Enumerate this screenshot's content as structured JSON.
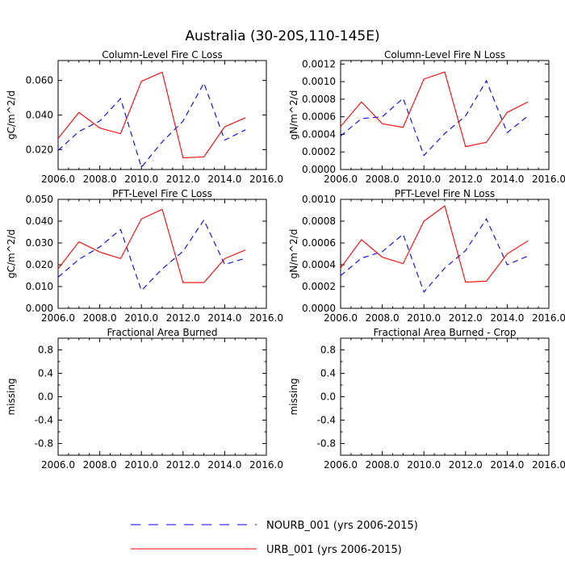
{
  "figure_title": "Australia (30-20S,110-145E)",
  "legend": {
    "entries": [
      {
        "label": "NOURB_001 (yrs 2006-2015)",
        "color": "#0000ff",
        "style": "dashed"
      },
      {
        "label": "URB_001 (yrs 2006-2015)",
        "color": "#ff0000",
        "style": "solid"
      }
    ]
  },
  "chart_data": [
    {
      "type": "line",
      "title": "Column-Level Fire C Loss",
      "ylabel": "gC/m^2/d",
      "xlim": [
        2006,
        2016
      ],
      "xticks": [
        2006,
        2008,
        2010,
        2012,
        2014,
        2016
      ],
      "xtick_labels": [
        "2006.0",
        "2008.0",
        "2010.0",
        "2012.0",
        "2014.0",
        "2016.0"
      ],
      "ylim": [
        0.0085,
        0.0715
      ],
      "yticks": [
        0.02,
        0.04,
        0.06
      ],
      "ytick_labels": [
        "0.020",
        "0.040",
        "0.060"
      ],
      "x": [
        2006,
        2007,
        2008,
        2009,
        2010,
        2011,
        2012,
        2013,
        2014,
        2015
      ],
      "series": [
        {
          "name": "NOURB_001 (yrs 2006-2015)",
          "color": "#0000ff",
          "style": "dashed",
          "values": [
            0.0195,
            0.0305,
            0.0365,
            0.0495,
            0.0098,
            0.0245,
            0.0365,
            0.0585,
            0.0255,
            0.0315
          ]
        },
        {
          "name": "URB_001 (yrs 2006-2015)",
          "color": "#ff0000",
          "style": "solid",
          "values": [
            0.0265,
            0.0415,
            0.0325,
            0.0292,
            0.0595,
            0.0648,
            0.0152,
            0.0158,
            0.0332,
            0.0385
          ]
        }
      ]
    },
    {
      "type": "line",
      "title": "Column-Level Fire N Loss",
      "ylabel": "gN/m^2/d",
      "xlim": [
        2006,
        2016
      ],
      "xticks": [
        2006,
        2008,
        2010,
        2012,
        2014,
        2016
      ],
      "xtick_labels": [
        "2006.0",
        "2008.0",
        "2010.0",
        "2012.0",
        "2014.0",
        "2016.0"
      ],
      "ylim": [
        0,
        0.00124
      ],
      "yticks": [
        0,
        0.0002,
        0.0004,
        0.0006,
        0.0008,
        0.001,
        0.0012
      ],
      "ytick_labels": [
        "0.0000",
        "0.0002",
        "0.0004",
        "0.0006",
        "0.0008",
        "0.0010",
        "0.0012"
      ],
      "x": [
        2006,
        2007,
        2008,
        2009,
        2010,
        2011,
        2012,
        2013,
        2014,
        2015
      ],
      "series": [
        {
          "name": "NOURB_001 (yrs 2006-2015)",
          "color": "#0000ff",
          "style": "dashed",
          "values": [
            0.00038,
            0.00058,
            0.0006,
            0.00081,
            0.00016,
            0.00041,
            0.00061,
            0.00101,
            0.00042,
            0.00061
          ]
        },
        {
          "name": "URB_001 (yrs 2006-2015)",
          "color": "#ff0000",
          "style": "solid",
          "values": [
            0.00049,
            0.00077,
            0.00052,
            0.00048,
            0.00103,
            0.00111,
            0.00026,
            0.00031,
            0.00065,
            0.00077
          ]
        }
      ]
    },
    {
      "type": "line",
      "title": "PFT-Level Fire C Loss",
      "ylabel": "gC/m^2/d",
      "xlim": [
        2006,
        2016
      ],
      "xticks": [
        2006,
        2008,
        2010,
        2012,
        2014,
        2016
      ],
      "xtick_labels": [
        "2006.0",
        "2008.0",
        "2010.0",
        "2012.0",
        "2014.0",
        "2016.0"
      ],
      "ylim": [
        0,
        0.05
      ],
      "yticks": [
        0,
        0.01,
        0.02,
        0.03,
        0.04,
        0.05
      ],
      "ytick_labels": [
        "0.000",
        "0.010",
        "0.020",
        "0.030",
        "0.040",
        "0.050"
      ],
      "x": [
        2006,
        2007,
        2008,
        2009,
        2010,
        2011,
        2012,
        2013,
        2014,
        2015
      ],
      "series": [
        {
          "name": "NOURB_001 (yrs 2006-2015)",
          "color": "#0000ff",
          "style": "dashed",
          "values": [
            0.0143,
            0.0225,
            0.0282,
            0.0362,
            0.0082,
            0.0181,
            0.0262,
            0.0405,
            0.0201,
            0.023
          ]
        },
        {
          "name": "URB_001 (yrs 2006-2015)",
          "color": "#ff0000",
          "style": "solid",
          "values": [
            0.0182,
            0.0305,
            0.0258,
            0.0228,
            0.041,
            0.0454,
            0.0118,
            0.0118,
            0.0228,
            0.0268
          ]
        }
      ]
    },
    {
      "type": "line",
      "title": "PFT-Level Fire N Loss",
      "ylabel": "gN/m^2/d",
      "xlim": [
        2006,
        2016
      ],
      "xticks": [
        2006,
        2008,
        2010,
        2012,
        2014,
        2016
      ],
      "xtick_labels": [
        "2006.0",
        "2008.0",
        "2010.0",
        "2012.0",
        "2014.0",
        "2016.0"
      ],
      "ylim": [
        0,
        0.001
      ],
      "yticks": [
        0,
        0.0002,
        0.0004,
        0.0006,
        0.0008,
        0.001
      ],
      "ytick_labels": [
        "0.0000",
        "0.0002",
        "0.0004",
        "0.0006",
        "0.0008",
        "0.0010"
      ],
      "x": [
        2006,
        2007,
        2008,
        2009,
        2010,
        2011,
        2012,
        2013,
        2014,
        2015
      ],
      "series": [
        {
          "name": "NOURB_001 (yrs 2006-2015)",
          "color": "#0000ff",
          "style": "dashed",
          "values": [
            0.0003,
            0.00046,
            0.00052,
            0.00068,
            0.00015,
            0.00037,
            0.00053,
            0.00082,
            0.0004,
            0.00048
          ]
        },
        {
          "name": "URB_001 (yrs 2006-2015)",
          "color": "#ff0000",
          "style": "solid",
          "values": [
            0.00037,
            0.00063,
            0.00047,
            0.00041,
            0.0008,
            0.00094,
            0.00024,
            0.00025,
            0.0005,
            0.00062
          ]
        }
      ]
    },
    {
      "type": "line",
      "title": "Fractional Area Burned",
      "ylabel": "missing",
      "xlim": [
        2006,
        2016
      ],
      "xticks": [
        2006,
        2008,
        2010,
        2012,
        2014,
        2016
      ],
      "xtick_labels": [
        "2006.0",
        "2008.0",
        "2010.0",
        "2012.0",
        "2014.0",
        "2016.0"
      ],
      "ylim": [
        -1,
        1
      ],
      "yticks": [
        -0.8,
        -0.4,
        0,
        0.4,
        0.8
      ],
      "ytick_labels": [
        "-0.8",
        "-0.4",
        "0.0",
        "0.4",
        "0.8"
      ],
      "minor_yticks": [
        -0.6,
        -0.2,
        0.2,
        0.6
      ],
      "x": [],
      "series": []
    },
    {
      "type": "line",
      "title": "Fractional Area Burned - Crop",
      "ylabel": "missing",
      "xlim": [
        2006,
        2016
      ],
      "xticks": [
        2006,
        2008,
        2010,
        2012,
        2014,
        2016
      ],
      "xtick_labels": [
        "2006.0",
        "2008.0",
        "2010.0",
        "2012.0",
        "2014.0",
        "2016.0"
      ],
      "ylim": [
        -1,
        1
      ],
      "yticks": [
        -0.8,
        -0.4,
        0,
        0.4,
        0.8
      ],
      "ytick_labels": [
        "-0.8",
        "-0.4",
        "0.0",
        "0.4",
        "0.8"
      ],
      "minor_yticks": [
        -0.6,
        -0.2,
        0.2,
        0.6
      ],
      "x": [],
      "series": []
    }
  ]
}
